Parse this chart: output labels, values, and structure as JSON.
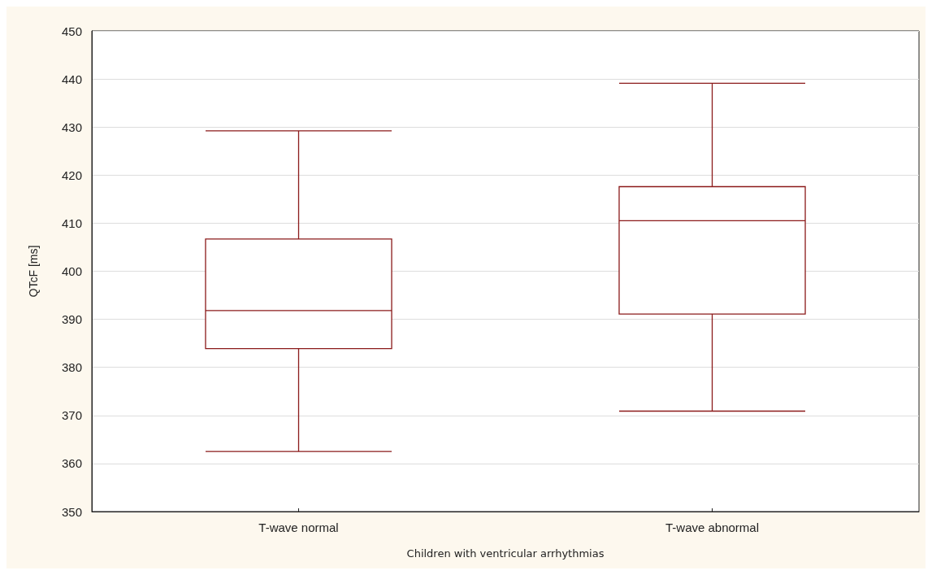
{
  "chart_data": {
    "type": "box",
    "xlabel": "Children with ventricular arrhythmias",
    "ylabel": "QTcF [ms]",
    "categories": [
      "T-wave normal",
      "T-wave abnormal"
    ],
    "series": [
      {
        "color": "#8b1a1a",
        "boxes": [
          {
            "low": 362.5,
            "q1": 383.9,
            "median": 391.8,
            "q3": 406.7,
            "high": 429.2
          },
          {
            "low": 370.9,
            "q1": 391.1,
            "median": 410.5,
            "q3": 417.6,
            "high": 439.1
          }
        ]
      }
    ],
    "ylim": [
      350,
      450
    ],
    "yticks": [
      350,
      360,
      370,
      380,
      390,
      400,
      410,
      420,
      430,
      440,
      450
    ],
    "grid": "y"
  }
}
